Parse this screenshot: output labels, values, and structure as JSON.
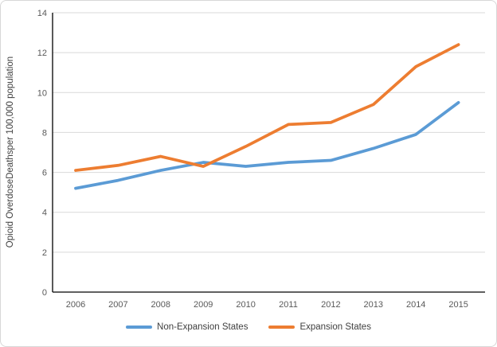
{
  "chart_data": {
    "type": "line",
    "title": "",
    "xlabel": "",
    "ylabel": "Opioid OverdoseDeathsper 100,000 population",
    "categories": [
      "2006",
      "2007",
      "2008",
      "2009",
      "2010",
      "2011",
      "2012",
      "2013",
      "2014",
      "2015"
    ],
    "series": [
      {
        "name": "Non-Expansion States",
        "color": "#5b9bd5",
        "values": [
          5.2,
          5.6,
          6.1,
          6.5,
          6.3,
          6.5,
          6.6,
          7.2,
          7.9,
          9.5
        ]
      },
      {
        "name": "Expansion States",
        "color": "#ed7d31",
        "values": [
          6.1,
          6.35,
          6.8,
          6.3,
          7.3,
          8.4,
          8.5,
          9.4,
          11.3,
          12.4
        ]
      }
    ],
    "ylim": [
      0,
      14
    ],
    "yticks": [
      0,
      2,
      4,
      6,
      8,
      10,
      12,
      14
    ],
    "grid": "horizontal",
    "legend_position": "bottom",
    "gridline_color": "#d9d9d9",
    "axis_line_color": "#000000",
    "tick_label_color": "#595959"
  }
}
